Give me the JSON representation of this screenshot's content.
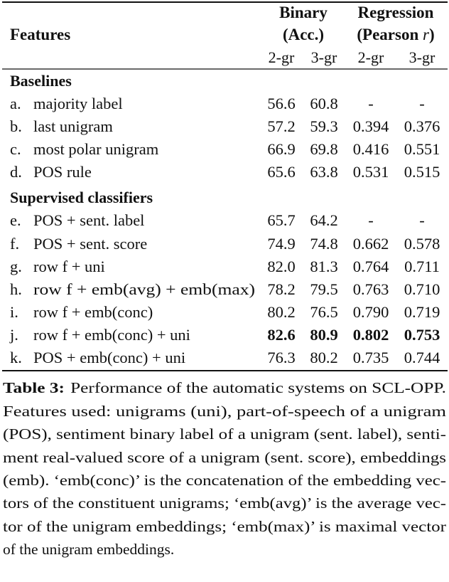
{
  "table": {
    "header": {
      "features": "Features",
      "binary_line1": "Binary",
      "binary_line2": "(Acc.)",
      "regression_line1": "Regression",
      "regression_line2": "(Pearson ",
      "regression_r": "r",
      "regression_close": ")",
      "subcols": [
        "2-gr",
        "3-gr",
        "2-gr",
        "3-gr"
      ]
    },
    "sections": [
      {
        "title": "Baselines",
        "rows": [
          {
            "id": "a.",
            "label": "majority label",
            "values": [
              "56.6",
              "60.8",
              "-",
              "-"
            ],
            "bold": false
          },
          {
            "id": "b.",
            "label": "last unigram",
            "values": [
              "57.2",
              "59.3",
              "0.394",
              "0.376"
            ],
            "bold": false
          },
          {
            "id": "c.",
            "label": "most polar unigram",
            "values": [
              "66.9",
              "69.8",
              "0.416",
              "0.551"
            ],
            "bold": false
          },
          {
            "id": "d.",
            "label": "POS rule",
            "values": [
              "65.6",
              "63.8",
              "0.531",
              "0.515"
            ],
            "bold": false
          }
        ]
      },
      {
        "title": "Supervised classifiers",
        "rows": [
          {
            "id": "e.",
            "label": "POS + sent. label",
            "values": [
              "65.7",
              "64.2",
              "-",
              "-"
            ],
            "bold": false
          },
          {
            "id": "f.",
            "label": "POS + sent. score",
            "values": [
              "74.9",
              "74.8",
              "0.662",
              "0.578"
            ],
            "bold": false
          },
          {
            "id": "g.",
            "label": "row f + uni",
            "values": [
              "82.0",
              "81.3",
              "0.764",
              "0.711"
            ],
            "bold": false
          },
          {
            "id": "h.",
            "label": "row f + emb(avg) + emb(max)",
            "values": [
              "78.2",
              "79.5",
              "0.763",
              "0.710"
            ],
            "bold": false
          },
          {
            "id": "i.",
            "label": "row f + emb(conc)",
            "values": [
              "80.2",
              "76.5",
              "0.790",
              "0.719"
            ],
            "bold": false
          },
          {
            "id": "j.",
            "label": "row f + emb(conc) + uni",
            "values": [
              "82.6",
              "80.9",
              "0.802",
              "0.753"
            ],
            "bold": true
          },
          {
            "id": "k.",
            "label": "POS + emb(conc) + uni",
            "values": [
              "76.3",
              "80.2",
              "0.735",
              "0.744"
            ],
            "bold": false
          }
        ]
      }
    ]
  },
  "caption": {
    "label": "Table 3:",
    "lines": [
      "Performance of the automatic systems on SCL-OPP.",
      "Features used:  unigrams (uni), part-of-speech of a unigram",
      "(POS), sentiment binary label of a unigram (sent. label), senti-",
      "ment real-valued score of a unigram (sent. score), embeddings",
      "(emb). ‘emb(conc)’ is the concatenation of the embedding vec-",
      "tors of the constituent unigrams; ‘emb(avg)’ is the average vec-",
      "tor of the unigram embeddings; ‘emb(max)’ is maximal vector",
      "of the unigram embeddings."
    ]
  }
}
